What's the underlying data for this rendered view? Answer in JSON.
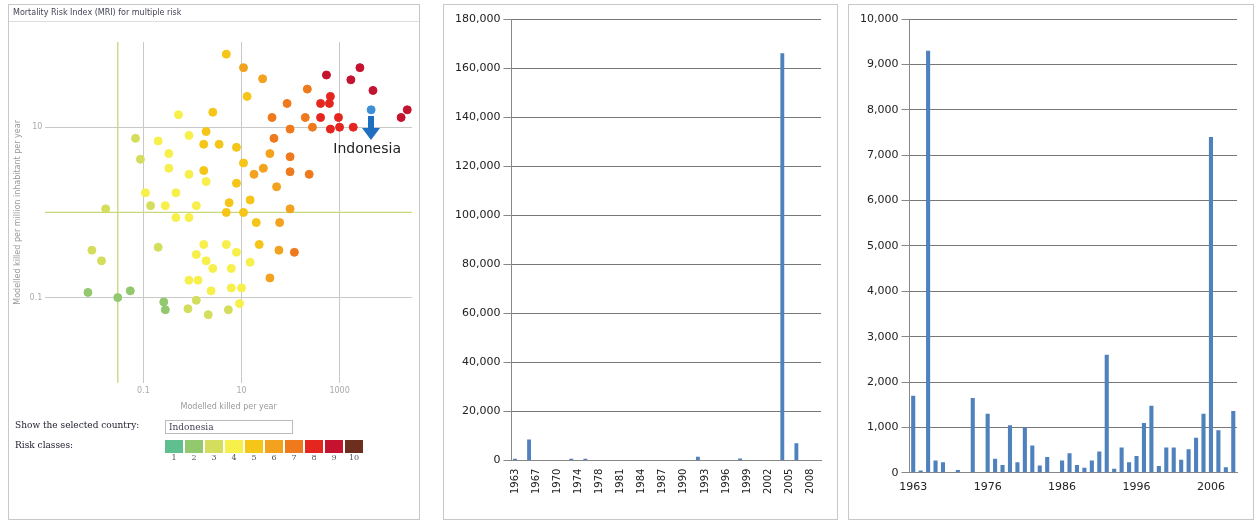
{
  "chart_data": [
    {
      "type": "scatter",
      "title": "Mortality Risk Index (MRI) for multiple risk",
      "xlabel": "Modelled killed per year",
      "ylabel": "Modelled killed per million inhabitant per year",
      "log": "xy",
      "grid": true,
      "legend": "bottom",
      "marker": "circle",
      "xlim": [
        0.001,
        30000
      ],
      "ylim": [
        0.01,
        100
      ],
      "xticks": [
        0.1,
        10,
        1000
      ],
      "yticks": [
        10,
        {
          "value": 1,
          "label": null
        },
        0.1
      ],
      "ref_lines": [
        {
          "axis": "x",
          "value": 0.03,
          "color": "#c8d87a"
        },
        {
          "axis": "y",
          "value": 1,
          "color": "#c8d87a"
        }
      ],
      "annotations": [
        "Show the selected country:",
        "Indonesia",
        "Risk classes:",
        {
          "text": "Indonesia",
          "x": 4400,
          "y": 16
        }
      ],
      "series": [
        {
          "name": "1",
          "color": "#5fbf8f"
        },
        {
          "name": "2",
          "color": "#92c86e",
          "x": [
            0.0074,
            0.03,
            0.054,
            0.26,
            0.28
          ],
          "values": [
            0.115,
            0.1,
            0.12,
            0.089,
            0.072
          ]
        },
        {
          "name": "3",
          "color": "#d4de5c",
          "x": [
            0.069,
            0.087,
            0.017,
            0.14,
            0.0089,
            0.014,
            0.2,
            0.81,
            1.2,
            2.1,
            5.4
          ],
          "values": [
            7.4,
            4.2,
            1.1,
            1.2,
            0.36,
            0.27,
            0.39,
            0.074,
            0.093,
            0.063,
            0.072
          ]
        },
        {
          "name": "4",
          "color": "#f7ef4a",
          "x": [
            0.52,
            0.85,
            0.2,
            0.33,
            0.33,
            0.85,
            0.11,
            0.46,
            0.28,
            1.2,
            1.9,
            0.85,
            0.46,
            0.85,
            1.3,
            2.6,
            2.4,
            6.2,
            10,
            9.1,
            1.2,
            1.9,
            6.2,
            15,
            1.7,
            4.9,
            7.9
          ],
          "values": [
            14,
            8,
            6.9,
            4.9,
            3.3,
            2.8,
            1.7,
            1.7,
            1.2,
            1.2,
            2.3,
            0.87,
            0.87,
            0.16,
            0.16,
            0.22,
            0.12,
            0.13,
            0.13,
            0.085,
            0.32,
            0.27,
            0.22,
            0.26,
            0.42,
            0.42,
            0.34
          ]
        },
        {
          "name": "5",
          "color": "#f5c518",
          "x": [
            4.9,
            13,
            2.6,
            1.9,
            3.5,
            1.7,
            7.9,
            11,
            1.7,
            7.9,
            5.6,
            15,
            4.9,
            11,
            20,
            23
          ],
          "values": [
            72,
            23,
            15,
            8.9,
            6.3,
            6.3,
            5.8,
            3.8,
            3.1,
            2.2,
            1.3,
            1.4,
            1,
            1,
            0.76,
            0.42
          ]
        },
        {
          "name": "6",
          "color": "#f3a21e",
          "x": [
            11,
            27,
            38,
            28,
            18,
            52,
            98,
            60,
            58,
            38
          ],
          "values": [
            50,
            37,
            4.9,
            3.3,
            2.8,
            2,
            1.1,
            0.76,
            0.36,
            0.17
          ]
        },
        {
          "name": "7",
          "color": "#ee7a1d",
          "x": [
            220,
            85,
            200,
            280,
            98,
            42,
            46,
            240,
            98,
            98,
            120
          ],
          "values": [
            28,
            19,
            13,
            10,
            9.5,
            13,
            7.4,
            2.8,
            4.5,
            3,
            0.34
          ]
        },
        {
          "name": "8",
          "color": "#e5261f",
          "x": [
            650,
            410,
            620,
            410,
            950,
            650,
            1000,
            1900
          ],
          "values": [
            23,
            19,
            19,
            13,
            13,
            9.5,
            10,
            10
          ]
        },
        {
          "name": "9",
          "color": "#c4122f",
          "x": [
            540,
            1700,
            2600,
            4800,
            18000,
            24000
          ],
          "values": [
            41,
            36,
            50,
            27,
            13,
            16
          ]
        },
        {
          "name": "10",
          "color": "#6d2e1e"
        },
        {
          "color": "#3d8fd6",
          "x": [
            4400
          ],
          "values": [
            16
          ]
        }
      ]
    },
    {
      "type": "bar",
      "color": "#4f81bd",
      "grid": "y",
      "ylim": [
        0,
        180000
      ],
      "yticks": [
        {
          "value": 0,
          "label": "0"
        },
        {
          "value": 20000,
          "label": "20,000"
        },
        {
          "value": 40000,
          "label": "40,000"
        },
        {
          "value": 60000,
          "label": "60,000"
        },
        {
          "value": 80000,
          "label": "80,000"
        },
        {
          "value": 100000,
          "label": "100,000"
        },
        {
          "value": 120000,
          "label": "120,000"
        },
        {
          "value": 140000,
          "label": "140,000"
        },
        {
          "value": 160000,
          "label": "160,000"
        },
        {
          "value": 180000,
          "label": "180,000"
        }
      ],
      "categories": [
        "1963",
        null,
        null,
        "1967",
        null,
        null,
        "1970",
        null,
        null,
        "1974",
        null,
        null,
        "1978",
        null,
        null,
        "1981",
        null,
        null,
        "1984",
        null,
        null,
        "1987",
        null,
        null,
        "1990",
        null,
        null,
        "1993",
        null,
        null,
        "1996",
        null,
        null,
        "1999",
        null,
        null,
        "2002",
        null,
        null,
        "2005",
        null,
        null,
        "2008",
        null
      ],
      "values": [
        700,
        0,
        8600,
        0,
        0,
        0,
        0,
        0,
        700,
        0,
        700,
        0,
        0,
        0,
        0,
        0,
        0,
        0,
        0,
        0,
        0,
        0,
        0,
        0,
        0,
        0,
        1500,
        0,
        0,
        0,
        0,
        0,
        800,
        0,
        0,
        0,
        0,
        0,
        166000,
        null,
        7100,
        0,
        0,
        null
      ]
    },
    {
      "type": "bar",
      "color": "#4f81bd",
      "grid": "y",
      "ylim": [
        0,
        10000
      ],
      "yticks": [
        {
          "value": 0,
          "label": "0"
        },
        {
          "value": 1000,
          "label": "1,000"
        },
        {
          "value": 2000,
          "label": "2,000"
        },
        {
          "value": 3000,
          "label": "3,000"
        },
        {
          "value": 4000,
          "label": "4,000"
        },
        {
          "value": 5000,
          "label": "5,000"
        },
        {
          "value": 6000,
          "label": "6,000"
        },
        {
          "value": 7000,
          "label": "7,000"
        },
        {
          "value": 8000,
          "label": "8,000"
        },
        {
          "value": 9000,
          "label": "9,000"
        },
        {
          "value": 10000,
          "label": "10,000"
        }
      ],
      "categories": [
        "1963",
        null,
        null,
        null,
        null,
        null,
        null,
        null,
        null,
        null,
        "1976",
        null,
        null,
        null,
        null,
        null,
        null,
        null,
        null,
        null,
        "1986",
        null,
        null,
        null,
        null,
        null,
        null,
        null,
        null,
        null,
        "1996",
        null,
        null,
        null,
        null,
        null,
        null,
        null,
        null,
        null,
        "2006",
        null,
        null,
        null
      ],
      "values": [
        1700,
        50,
        9300,
        270,
        230,
        0,
        60,
        0,
        1650,
        0,
        1300,
        310,
        170,
        1050,
        230,
        1000,
        600,
        160,
        350,
        0,
        270,
        430,
        170,
        110,
        270,
        470,
        2600,
        90,
        560,
        230,
        370,
        1100,
        1480,
        150,
        560,
        560,
        290,
        520,
        770,
        1300,
        7400,
        940,
        120,
        1360
      ]
    }
  ]
}
